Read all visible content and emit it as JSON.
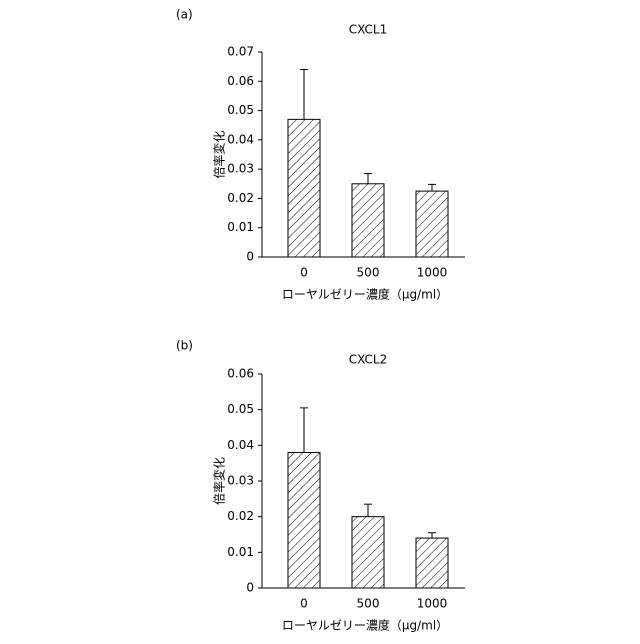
{
  "chart_data": [
    {
      "type": "bar",
      "label": "(a)",
      "title": "CXCL1",
      "x_label": "ローヤルゼリー濃度（μg/ml）",
      "y_label": "倍率変化",
      "categories": [
        "0",
        "500",
        "1000"
      ],
      "values": [
        0.047,
        0.025,
        0.0225
      ],
      "errors": [
        0.017,
        0.0035,
        0.0023
      ],
      "color": "#000000",
      "ylim": [
        0,
        0.07
      ],
      "yticks": [
        0,
        0.01,
        0.02,
        0.03,
        0.04,
        0.05,
        0.06,
        0.07
      ]
    },
    {
      "type": "bar",
      "label": "(b)",
      "title": "CXCL2",
      "x_label": "ローヤルゼリー濃度（μg/ml）",
      "y_label": "倍率変化",
      "categories": [
        "0",
        "500",
        "1000"
      ],
      "values": [
        0.038,
        0.02,
        0.014
      ],
      "errors": [
        0.0125,
        0.0035,
        0.0015
      ],
      "color": "#000000",
      "ylim": [
        0,
        0.06
      ],
      "yticks": [
        0,
        0.01,
        0.02,
        0.03,
        0.04,
        0.05,
        0.06
      ]
    }
  ]
}
